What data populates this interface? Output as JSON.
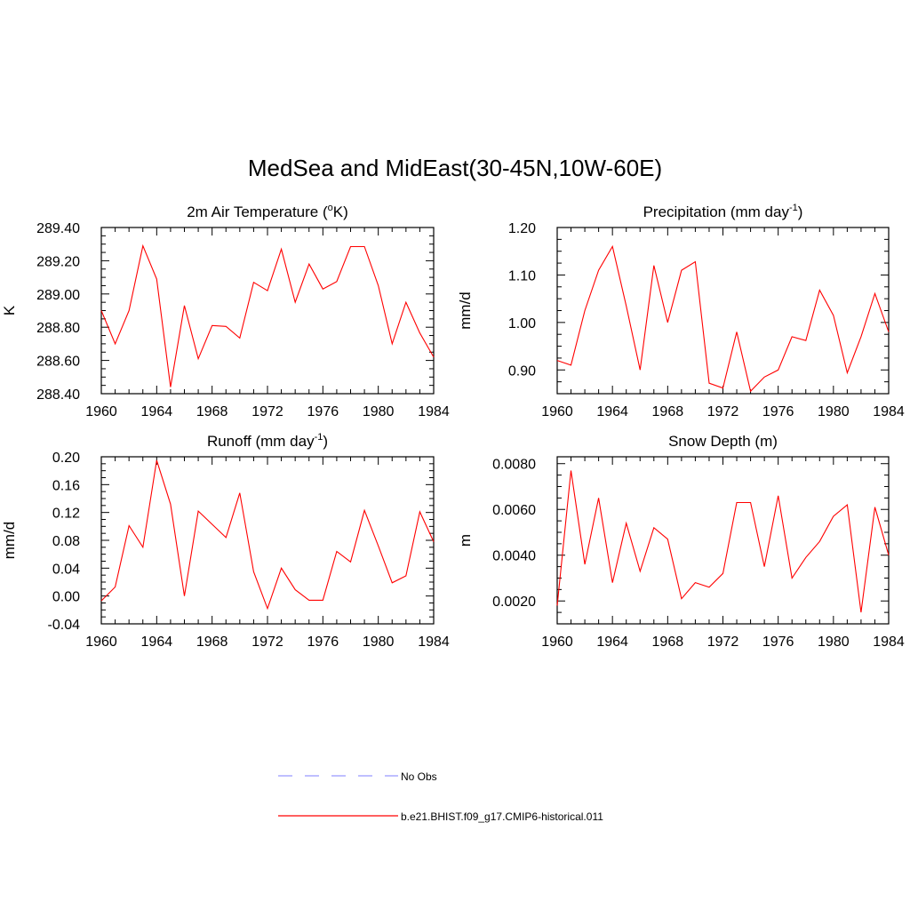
{
  "figure": {
    "title": "MedSea and MidEast(30-45N,10W-60E)"
  },
  "colors": {
    "model": "#ff0000",
    "obs": "#9999ff",
    "axis": "#000000"
  },
  "legend": {
    "placement": "bottom-center",
    "entries": [
      {
        "label": "No Obs",
        "style": "dashed",
        "color": "#9999ff"
      },
      {
        "label": "b.e21.BHIST.f09_g17.CMIP6-historical.011",
        "style": "solid",
        "color": "#ff0000"
      }
    ]
  },
  "chart_data": [
    {
      "type": "line",
      "title": "2m Air Temperature (",
      "title_sup": "o",
      "title_end": "K)",
      "ylabel": "K",
      "xlim": [
        1960,
        1984
      ],
      "ylim": [
        288.4,
        289.4
      ],
      "xticks": [
        "1960",
        "1964",
        "1968",
        "1972",
        "1976",
        "1980",
        "1984"
      ],
      "yticks": [
        "288.40",
        "288.60",
        "288.80",
        "289.00",
        "289.20",
        "289.40"
      ],
      "grid": false,
      "x": [
        1960,
        1961,
        1962,
        1963,
        1964,
        1965,
        1966,
        1967,
        1968,
        1969,
        1970,
        1971,
        1972,
        1973,
        1974,
        1975,
        1976,
        1977,
        1978,
        1979,
        1980,
        1981,
        1982,
        1983,
        1984
      ],
      "values": [
        288.9,
        288.7,
        288.9,
        289.29,
        289.09,
        288.44,
        288.93,
        288.61,
        288.81,
        288.805,
        288.735,
        289.07,
        289.02,
        289.27,
        288.95,
        289.18,
        289.03,
        289.075,
        289.285,
        289.285,
        289.05,
        288.7,
        288.95,
        288.765,
        288.62
      ]
    },
    {
      "type": "line",
      "title": "Precipitation (mm day",
      "title_sup": "-1",
      "title_end": ")",
      "ylabel": "mm/d",
      "xlim": [
        1960,
        1984
      ],
      "ylim": [
        0.85,
        1.2
      ],
      "xticks": [
        "1960",
        "1964",
        "1968",
        "1972",
        "1976",
        "1980",
        "1984"
      ],
      "yticks": [
        "0.90",
        "1.00",
        "1.10",
        "1.20"
      ],
      "grid": false,
      "x": [
        1960,
        1961,
        1962,
        1963,
        1964,
        1965,
        1966,
        1967,
        1968,
        1969,
        1970,
        1971,
        1972,
        1973,
        1974,
        1975,
        1976,
        1977,
        1978,
        1979,
        1980,
        1981,
        1982,
        1983,
        1984
      ],
      "values": [
        0.92,
        0.91,
        1.025,
        1.11,
        1.16,
        1.035,
        0.9,
        1.12,
        1.0,
        1.11,
        1.128,
        0.872,
        0.862,
        0.98,
        0.855,
        0.885,
        0.9,
        0.97,
        0.962,
        1.068,
        1.015,
        0.894,
        0.97,
        1.061,
        0.98
      ]
    },
    {
      "type": "line",
      "title": "Runoff (mm day",
      "title_sup": "-1",
      "title_end": ")",
      "ylabel": "mm/d",
      "xlim": [
        1960,
        1984
      ],
      "ylim": [
        -0.04,
        0.2
      ],
      "xticks": [
        "1960",
        "1964",
        "1968",
        "1972",
        "1976",
        "1980",
        "1984"
      ],
      "yticks": [
        "-0.04",
        "0.00",
        "0.04",
        "0.08",
        "0.12",
        "0.16",
        "0.20"
      ],
      "grid": false,
      "x": [
        1960,
        1961,
        1962,
        1963,
        1964,
        1965,
        1966,
        1967,
        1968,
        1969,
        1970,
        1971,
        1972,
        1973,
        1974,
        1975,
        1976,
        1977,
        1978,
        1979,
        1980,
        1981,
        1982,
        1983,
        1984
      ],
      "values": [
        -0.007,
        0.013,
        0.101,
        0.07,
        0.195,
        0.132,
        0.0,
        0.122,
        0.103,
        0.084,
        0.148,
        0.035,
        -0.018,
        0.04,
        0.009,
        -0.006,
        -0.006,
        0.064,
        0.049,
        0.123,
        0.072,
        0.019,
        0.029,
        0.121,
        0.078
      ]
    },
    {
      "type": "line",
      "title": "Snow Depth (m)",
      "title_sup": "",
      "title_end": "",
      "ylabel": "m",
      "xlim": [
        1960,
        1984
      ],
      "ylim": [
        0.001,
        0.0083
      ],
      "xticks": [
        "1960",
        "1964",
        "1968",
        "1972",
        "1976",
        "1980",
        "1984"
      ],
      "yticks": [
        "0.0020",
        "0.0040",
        "0.0060",
        "0.0080"
      ],
      "grid": false,
      "x": [
        1960,
        1961,
        1962,
        1963,
        1964,
        1965,
        1966,
        1967,
        1968,
        1969,
        1970,
        1971,
        1972,
        1973,
        1974,
        1975,
        1976,
        1977,
        1978,
        1979,
        1980,
        1981,
        1982,
        1983,
        1984
      ],
      "values": [
        0.0018,
        0.0077,
        0.0036,
        0.0065,
        0.0028,
        0.0054,
        0.0033,
        0.0052,
        0.0047,
        0.0021,
        0.0028,
        0.0026,
        0.0032,
        0.0063,
        0.0063,
        0.0035,
        0.0066,
        0.003,
        0.0039,
        0.0046,
        0.0057,
        0.0062,
        0.0015,
        0.0061,
        0.004
      ]
    }
  ]
}
